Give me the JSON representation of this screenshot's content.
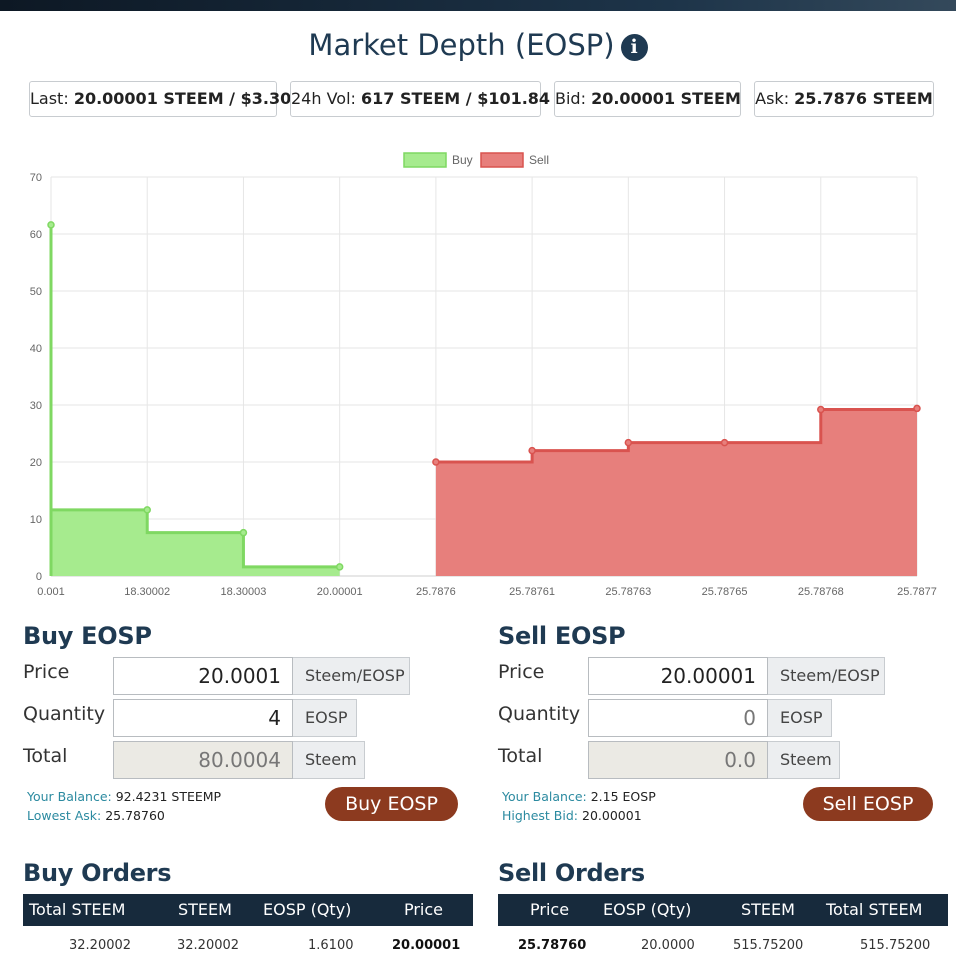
{
  "title": "Market Depth (EOSP)",
  "title_icon": "info-icon",
  "stats": {
    "last_label": "Last:",
    "last_value": "20.00001 STEEM / $3.30",
    "vol_label": "24h Vol:",
    "vol_value": "617 STEEM / $101.84",
    "bid_label": "Bid:",
    "bid_value": "20.00001 STEEM",
    "ask_label": "Ask:",
    "ask_value": "25.7876 STEEM"
  },
  "chart_data": {
    "type": "area",
    "categories": [
      "0.001",
      "18.30002",
      "18.30003",
      "20.00001",
      "25.7876",
      "25.78761",
      "25.78763",
      "25.78765",
      "25.78768",
      "25.7877"
    ],
    "series": [
      {
        "name": "Buy",
        "color": "#a6eb8e",
        "stroke": "#7fd862",
        "values": [
          61.6,
          11.6,
          7.6,
          1.6,
          null,
          null,
          null,
          null,
          null,
          null
        ]
      },
      {
        "name": "Sell",
        "color": "#e77f7c",
        "stroke": "#d9534f",
        "values": [
          null,
          null,
          null,
          null,
          20.0,
          22.0,
          23.4,
          23.4,
          29.2,
          29.4
        ]
      }
    ],
    "ylim": [
      0,
      70
    ],
    "yticks": [
      0,
      10,
      20,
      30,
      40,
      50,
      60,
      70
    ],
    "grid": true,
    "legend": "top"
  },
  "buy_form": {
    "title": "Buy EOSP",
    "price_label": "Price",
    "price_value": "20.0001",
    "price_unit": "Steem/EOSP",
    "quantity_label": "Quantity",
    "quantity_value": "4",
    "quantity_unit": "EOSP",
    "total_label": "Total",
    "total_value": "80.0004",
    "total_unit": "Steem",
    "balance_label": "Your Balance:",
    "balance_value": "92.4231 STEEMP",
    "lowest_ask_label": "Lowest Ask:",
    "lowest_ask_value": "25.78760",
    "button": "Buy EOSP"
  },
  "sell_form": {
    "title": "Sell EOSP",
    "price_label": "Price",
    "price_value": "20.00001",
    "price_unit": "Steem/EOSP",
    "quantity_label": "Quantity",
    "quantity_value": "0",
    "quantity_unit": "EOSP",
    "total_label": "Total",
    "total_value": "0.0",
    "total_unit": "Steem",
    "balance_label": "Your Balance:",
    "balance_value": "2.15 EOSP",
    "highest_bid_label": "Highest Bid:",
    "highest_bid_value": "20.00001",
    "button": "Sell EOSP"
  },
  "buy_orders": {
    "title": "Buy Orders",
    "headers": [
      "Total STEEM",
      "STEEM",
      "EOSP (Qty)",
      "Price"
    ],
    "rows": [
      [
        "32.20002",
        "32.20002",
        "1.6100",
        "20.00001"
      ]
    ]
  },
  "sell_orders": {
    "title": "Sell Orders",
    "headers": [
      "Price",
      "EOSP (Qty)",
      "STEEM",
      "Total STEEM"
    ],
    "rows": [
      [
        "25.78760",
        "20.0000",
        "515.75200",
        "515.75200"
      ]
    ]
  }
}
